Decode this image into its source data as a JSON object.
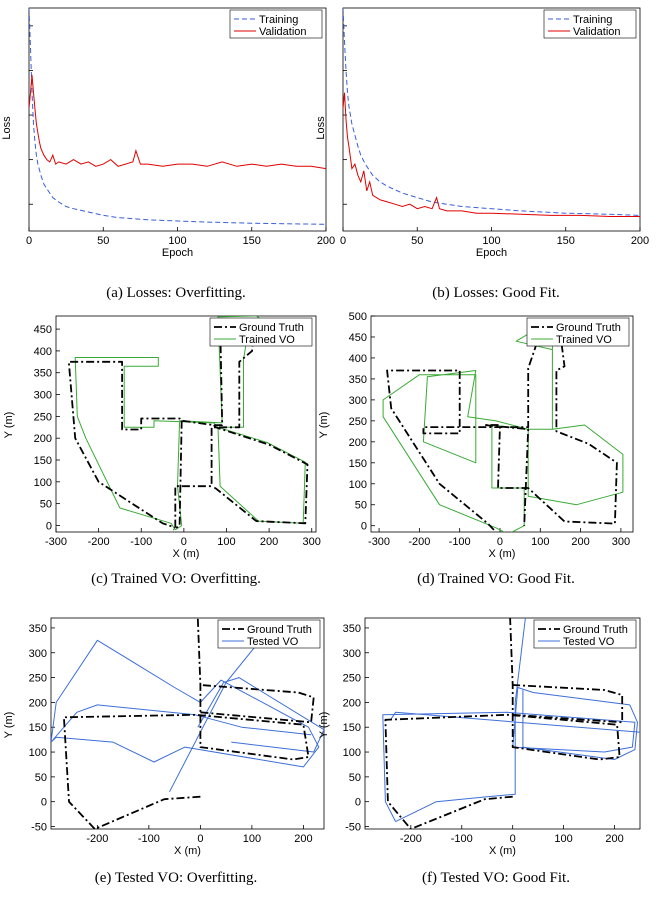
{
  "chart_data": [
    {
      "id": "a",
      "type": "line",
      "caption": "(a) Losses: Overfitting.",
      "xlabel": "Epoch",
      "ylabel": "Loss",
      "xlim": [
        0,
        200
      ],
      "ylim": [
        0,
        1
      ],
      "xticks": [
        0,
        50,
        100,
        150,
        200
      ],
      "yticks": [],
      "yticks_unlabeled": [
        0.12,
        0.32,
        0.52,
        0.72,
        0.92
      ],
      "legend": "top-right",
      "series": [
        {
          "name": "Training",
          "style": "dashed",
          "color": "#3a5fd9",
          "x": [
            0,
            1,
            2,
            3,
            4,
            5,
            6,
            8,
            10,
            13,
            16,
            20,
            25,
            30,
            40,
            50,
            60,
            80,
            100,
            120,
            150,
            180,
            200
          ],
          "y": [
            1.0,
            0.82,
            0.62,
            0.48,
            0.4,
            0.34,
            0.3,
            0.25,
            0.21,
            0.18,
            0.15,
            0.13,
            0.11,
            0.1,
            0.085,
            0.07,
            0.06,
            0.05,
            0.045,
            0.04,
            0.035,
            0.032,
            0.03
          ]
        },
        {
          "name": "Validation",
          "style": "solid",
          "color": "#e00000",
          "x": [
            0,
            1,
            2,
            3,
            4,
            5,
            6,
            7,
            8,
            10,
            12,
            14,
            16,
            18,
            20,
            25,
            30,
            35,
            40,
            45,
            50,
            55,
            60,
            65,
            70,
            72,
            75,
            80,
            90,
            100,
            110,
            120,
            130,
            140,
            150,
            160,
            170,
            180,
            190,
            200
          ],
          "y": [
            0.55,
            0.62,
            0.7,
            0.62,
            0.55,
            0.48,
            0.44,
            0.4,
            0.37,
            0.34,
            0.32,
            0.31,
            0.34,
            0.3,
            0.31,
            0.3,
            0.32,
            0.3,
            0.31,
            0.29,
            0.3,
            0.32,
            0.29,
            0.3,
            0.31,
            0.36,
            0.3,
            0.3,
            0.29,
            0.3,
            0.3,
            0.29,
            0.31,
            0.29,
            0.3,
            0.29,
            0.3,
            0.29,
            0.29,
            0.28
          ]
        }
      ]
    },
    {
      "id": "b",
      "type": "line",
      "caption": "(b) Losses: Good Fit.",
      "xlabel": "Epoch",
      "ylabel": "Loss",
      "xlim": [
        0,
        200
      ],
      "ylim": [
        0,
        1
      ],
      "xticks": [
        0,
        50,
        100,
        150,
        200
      ],
      "yticks": [],
      "yticks_unlabeled": [
        0.12,
        0.32,
        0.52,
        0.72,
        0.92
      ],
      "legend": "top-right",
      "series": [
        {
          "name": "Training",
          "style": "dashed",
          "color": "#3a5fd9",
          "x": [
            0,
            1,
            2,
            3,
            4,
            5,
            6,
            8,
            10,
            12,
            15,
            20,
            25,
            30,
            40,
            50,
            60,
            80,
            100,
            120,
            150,
            180,
            200
          ],
          "y": [
            1.0,
            0.85,
            0.72,
            0.62,
            0.56,
            0.52,
            0.48,
            0.43,
            0.38,
            0.34,
            0.3,
            0.25,
            0.22,
            0.2,
            0.17,
            0.15,
            0.13,
            0.11,
            0.1,
            0.09,
            0.08,
            0.075,
            0.07
          ]
        },
        {
          "name": "Validation",
          "style": "solid",
          "color": "#e00000",
          "x": [
            0,
            1,
            2,
            3,
            4,
            5,
            6,
            8,
            10,
            12,
            14,
            16,
            18,
            20,
            25,
            30,
            35,
            40,
            45,
            50,
            55,
            60,
            63,
            65,
            70,
            80,
            90,
            100,
            120,
            140,
            160,
            180,
            200
          ],
          "y": [
            0.55,
            0.62,
            0.5,
            0.42,
            0.38,
            0.33,
            0.28,
            0.3,
            0.25,
            0.22,
            0.27,
            0.18,
            0.22,
            0.16,
            0.14,
            0.13,
            0.12,
            0.11,
            0.12,
            0.1,
            0.11,
            0.1,
            0.15,
            0.1,
            0.09,
            0.09,
            0.08,
            0.08,
            0.075,
            0.07,
            0.07,
            0.065,
            0.065
          ]
        }
      ]
    },
    {
      "id": "c",
      "type": "line",
      "caption": "(c) Trained VO: Overfitting.",
      "xlabel": "X (m)",
      "ylabel": "Y (m)",
      "xlim": [
        -300,
        310
      ],
      "ylim": [
        -15,
        480
      ],
      "xticks": [
        -300,
        -200,
        -100,
        0,
        100,
        200,
        300
      ],
      "yticks": [
        0,
        50,
        100,
        150,
        200,
        250,
        300,
        350,
        400,
        450
      ],
      "legend": "top-right",
      "series": [
        {
          "name": "Ground Truth",
          "style": "dashdot",
          "color": "#000000",
          "x": [
            -10,
            -10,
            -20,
            -200,
            -245,
            -270,
            -265,
            -100,
            -100,
            -100,
            -65,
            -65,
            -5,
            -5,
            0,
            0,
            75,
            75,
            200,
            265,
            290,
            290,
            280,
            140,
            70,
            70,
            -15,
            -15,
            -20,
            -20,
            65,
            65,
            65,
            75,
            75,
            135,
            140,
            160,
            180,
            180,
            170,
            140,
            100,
            90,
            90,
            85,
            70,
            -20
          ],
          "y": [
            -10,
            0,
            10,
            95,
            200,
            290,
            375,
            375,
            220,
            220,
            220,
            245,
            245,
            240,
            90,
            240,
            245,
            225,
            190,
            155,
            135,
            30,
            0,
            10,
            85,
            225,
            225,
            10,
            -5,
            80,
            90,
            230,
            245,
            370,
            400,
            400,
            395,
            400,
            400,
            470,
            472,
            472,
            470,
            430,
            375,
            245,
            230,
            240
          ],
          "path": [
            [
              -20,
              90
            ],
            [
              -20,
              0
            ],
            [
              -20,
              -5
            ],
            [
              -40,
              0
            ],
            [
              -60,
              5
            ],
            [
              -140,
              30
            ],
            [
              -230,
              200
            ],
            [
              -270,
              290
            ],
            [
              -265,
              375
            ],
            [
              -100,
              375
            ],
            [
              -100,
              220
            ],
            [
              -60,
              220
            ],
            [
              -60,
              245
            ],
            [
              60,
              245
            ],
            [
              65,
              90
            ],
            [
              -20,
              90
            ]
          ]
        },
        {
          "name": "Trained VO",
          "style": "solid",
          "color": "#3aaa35",
          "x": [],
          "y": []
        }
      ]
    },
    {
      "id": "d",
      "type": "line",
      "caption": "(d) Trained VO: Good Fit.",
      "xlabel": "X (m)",
      "ylabel": "Y (m)",
      "xlim": [
        -320,
        330
      ],
      "ylim": [
        -15,
        500
      ],
      "xticks": [
        -300,
        -200,
        -100,
        0,
        100,
        200,
        300
      ],
      "yticks": [
        0,
        50,
        100,
        150,
        200,
        250,
        300,
        350,
        400,
        450,
        500
      ],
      "legend": "top-right",
      "series": [
        {
          "name": "Ground Truth",
          "style": "dashdot",
          "color": "#000000",
          "x": [],
          "y": []
        },
        {
          "name": "Trained VO",
          "style": "solid",
          "color": "#3aaa35",
          "x": [],
          "y": []
        }
      ]
    },
    {
      "id": "e",
      "type": "line",
      "caption": "(e) Tested VO: Overfitting.",
      "xlabel": "X (m)",
      "ylabel": "Y (m)",
      "xlim": [
        -290,
        240
      ],
      "ylim": [
        -55,
        370
      ],
      "xticks": [
        -200,
        -100,
        0,
        100,
        200
      ],
      "yticks": [
        -50,
        0,
        50,
        100,
        150,
        200,
        250,
        300,
        350
      ],
      "legend": "top-right",
      "series": [
        {
          "name": "Ground Truth",
          "style": "dashdot",
          "color": "#000000",
          "x": [],
          "y": []
        },
        {
          "name": "Tested VO",
          "style": "solid",
          "color": "#3e6fd8",
          "x": [],
          "y": []
        }
      ]
    },
    {
      "id": "f",
      "type": "line",
      "caption": "(f) Tested VO: Good Fit.",
      "xlabel": "X (m)",
      "ylabel": "Y (m)",
      "xlim": [
        -290,
        250
      ],
      "ylim": [
        -55,
        370
      ],
      "xticks": [
        -200,
        -100,
        0,
        100,
        200
      ],
      "yticks": [
        -50,
        0,
        50,
        100,
        150,
        200,
        250,
        300,
        350
      ],
      "legend": "top-right",
      "series": [
        {
          "name": "Ground Truth",
          "style": "dashdot",
          "color": "#000000",
          "x": [],
          "y": []
        },
        {
          "name": "Tested VO",
          "style": "solid",
          "color": "#3e6fd8",
          "x": [],
          "y": []
        }
      ]
    }
  ]
}
